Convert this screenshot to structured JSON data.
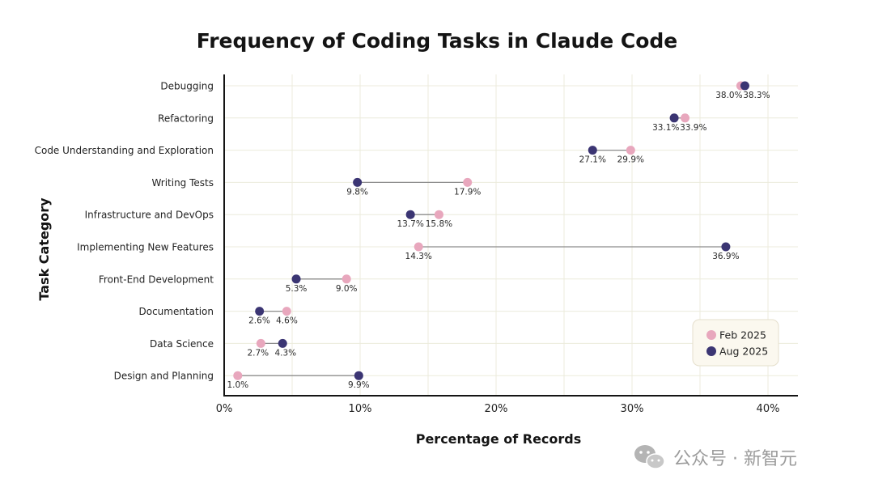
{
  "chart_data": {
    "type": "dumbbell",
    "title": "Frequency of Coding Tasks in Claude Code",
    "xlabel": "Percentage of Records",
    "ylabel": "Task Category",
    "xlim": [
      0,
      42
    ],
    "xticks": [
      0,
      10,
      20,
      30,
      40
    ],
    "xtick_labels": [
      "0%",
      "10%",
      "20%",
      "30%",
      "40%"
    ],
    "grid": true,
    "legend_position": "bottom-right",
    "categories": [
      "Debugging",
      "Refactoring",
      "Code Understanding and Exploration",
      "Writing Tests",
      "Infrastructure and DevOps",
      "Implementing New Features",
      "Front-End Development",
      "Documentation",
      "Data Science",
      "Design and Planning"
    ],
    "series": [
      {
        "name": "Feb 2025",
        "color": "#e8a7bd",
        "values": [
          38.0,
          33.9,
          29.9,
          17.9,
          15.8,
          14.3,
          9.0,
          4.6,
          2.7,
          1.0
        ],
        "labels": [
          "38.0%",
          "33.9%",
          "29.9%",
          "17.9%",
          "15.8%",
          "14.3%",
          "9.0%",
          "4.6%",
          "2.7%",
          "1.0%"
        ]
      },
      {
        "name": "Aug 2025",
        "color": "#3b3573",
        "values": [
          38.3,
          33.1,
          27.1,
          9.8,
          13.7,
          36.9,
          5.3,
          2.6,
          4.3,
          9.9
        ],
        "labels": [
          "38.3%",
          "33.1%",
          "27.1%",
          "9.8%",
          "13.7%",
          "36.9%",
          "5.3%",
          "2.6%",
          "4.3%",
          "9.9%"
        ]
      }
    ]
  },
  "colors": {
    "grid": "#ecebdc",
    "axis": "#141414",
    "connector": "#8c8c8c",
    "legend_bg": "#fbf8ef",
    "legend_border": "#e5dfcc"
  },
  "watermark": {
    "text": "公众号 · 新智元",
    "icon": "wechat-icon"
  }
}
